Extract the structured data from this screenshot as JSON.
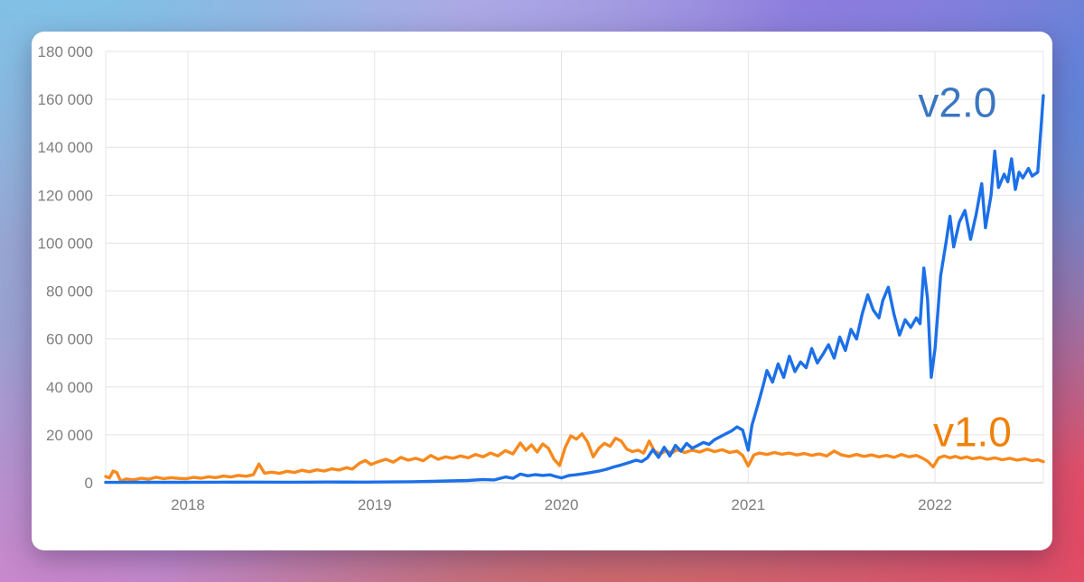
{
  "chart_data": {
    "type": "line",
    "title": "",
    "xlabel": "",
    "ylabel": "",
    "grid": true,
    "legend_position": "inline-annotations",
    "x_axis": {
      "range": [
        2017.56,
        2022.58
      ],
      "ticks": [
        2018,
        2019,
        2020,
        2021,
        2022
      ],
      "tick_labels": [
        "2018",
        "2019",
        "2020",
        "2021",
        "2022"
      ]
    },
    "y_axis": {
      "range": [
        0,
        180000
      ],
      "ticks": [
        0,
        20000,
        40000,
        60000,
        80000,
        100000,
        120000,
        140000,
        160000,
        180000
      ],
      "tick_labels": [
        "0",
        "20 000",
        "40 000",
        "60 000",
        "80 000",
        "100 000",
        "120 000",
        "140 000",
        "160 000",
        "180 000"
      ]
    },
    "styles": {
      "gridline_color": "#e4e4e4",
      "zero_line_color": "#c9c9c9",
      "tick_text_color": "#7e7e7e",
      "tick_font_size": 17,
      "line_width": 3.4
    },
    "series": [
      {
        "name": "v1.0",
        "color": "#f8891d",
        "points": [
          [
            2017.56,
            2600
          ],
          [
            2017.58,
            2000
          ],
          [
            2017.6,
            4900
          ],
          [
            2017.62,
            4200
          ],
          [
            2017.64,
            700
          ],
          [
            2017.67,
            1600
          ],
          [
            2017.71,
            1200
          ],
          [
            2017.75,
            1900
          ],
          [
            2017.79,
            1450
          ],
          [
            2017.83,
            2300
          ],
          [
            2017.87,
            1700
          ],
          [
            2017.91,
            2100
          ],
          [
            2017.95,
            1800
          ],
          [
            2017.99,
            1650
          ],
          [
            2018.03,
            2250
          ],
          [
            2018.07,
            1900
          ],
          [
            2018.11,
            2500
          ],
          [
            2018.15,
            2150
          ],
          [
            2018.19,
            2800
          ],
          [
            2018.23,
            2400
          ],
          [
            2018.27,
            3100
          ],
          [
            2018.31,
            2700
          ],
          [
            2018.35,
            3300
          ],
          [
            2018.38,
            7800
          ],
          [
            2018.41,
            4000
          ],
          [
            2018.45,
            4400
          ],
          [
            2018.49,
            3900
          ],
          [
            2018.53,
            4800
          ],
          [
            2018.57,
            4300
          ],
          [
            2018.61,
            5200
          ],
          [
            2018.65,
            4600
          ],
          [
            2018.69,
            5400
          ],
          [
            2018.73,
            4900
          ],
          [
            2018.77,
            5800
          ],
          [
            2018.81,
            5300
          ],
          [
            2018.85,
            6300
          ],
          [
            2018.88,
            5700
          ],
          [
            2018.92,
            8200
          ],
          [
            2018.95,
            9300
          ],
          [
            2018.98,
            7600
          ],
          [
            2019.02,
            8800
          ],
          [
            2019.06,
            9800
          ],
          [
            2019.1,
            8600
          ],
          [
            2019.14,
            10600
          ],
          [
            2019.18,
            9400
          ],
          [
            2019.22,
            10200
          ],
          [
            2019.26,
            9200
          ],
          [
            2019.3,
            11400
          ],
          [
            2019.34,
            9800
          ],
          [
            2019.38,
            10800
          ],
          [
            2019.42,
            10200
          ],
          [
            2019.46,
            11200
          ],
          [
            2019.5,
            10400
          ],
          [
            2019.54,
            11800
          ],
          [
            2019.58,
            10800
          ],
          [
            2019.62,
            12400
          ],
          [
            2019.66,
            11200
          ],
          [
            2019.7,
            13400
          ],
          [
            2019.74,
            12000
          ],
          [
            2019.78,
            16600
          ],
          [
            2019.81,
            13600
          ],
          [
            2019.84,
            15800
          ],
          [
            2019.87,
            12800
          ],
          [
            2019.9,
            16200
          ],
          [
            2019.93,
            14400
          ],
          [
            2019.96,
            9800
          ],
          [
            2019.99,
            7200
          ],
          [
            2020.02,
            14800
          ],
          [
            2020.05,
            19600
          ],
          [
            2020.08,
            18200
          ],
          [
            2020.11,
            20400
          ],
          [
            2020.14,
            17000
          ],
          [
            2020.17,
            10800
          ],
          [
            2020.2,
            14400
          ],
          [
            2020.23,
            16400
          ],
          [
            2020.26,
            15200
          ],
          [
            2020.29,
            18600
          ],
          [
            2020.32,
            17400
          ],
          [
            2020.35,
            14000
          ],
          [
            2020.38,
            13000
          ],
          [
            2020.41,
            13600
          ],
          [
            2020.44,
            12400
          ],
          [
            2020.47,
            17400
          ],
          [
            2020.5,
            13000
          ],
          [
            2020.53,
            12000
          ],
          [
            2020.56,
            13400
          ],
          [
            2020.59,
            12400
          ],
          [
            2020.62,
            13800
          ],
          [
            2020.66,
            12600
          ],
          [
            2020.7,
            13600
          ],
          [
            2020.74,
            12800
          ],
          [
            2020.78,
            14000
          ],
          [
            2020.82,
            13000
          ],
          [
            2020.86,
            13800
          ],
          [
            2020.9,
            12600
          ],
          [
            2020.94,
            13200
          ],
          [
            2020.97,
            11400
          ],
          [
            2021.0,
            7000
          ],
          [
            2021.03,
            11600
          ],
          [
            2021.06,
            12400
          ],
          [
            2021.1,
            11800
          ],
          [
            2021.14,
            12600
          ],
          [
            2021.18,
            11900
          ],
          [
            2021.22,
            12400
          ],
          [
            2021.26,
            11600
          ],
          [
            2021.3,
            12200
          ],
          [
            2021.34,
            11400
          ],
          [
            2021.38,
            12000
          ],
          [
            2021.42,
            11200
          ],
          [
            2021.46,
            13200
          ],
          [
            2021.5,
            11600
          ],
          [
            2021.54,
            11000
          ],
          [
            2021.58,
            11800
          ],
          [
            2021.62,
            11000
          ],
          [
            2021.66,
            11600
          ],
          [
            2021.7,
            10800
          ],
          [
            2021.74,
            11400
          ],
          [
            2021.78,
            10600
          ],
          [
            2021.82,
            11800
          ],
          [
            2021.86,
            10800
          ],
          [
            2021.9,
            11400
          ],
          [
            2021.93,
            10400
          ],
          [
            2021.96,
            9000
          ],
          [
            2021.99,
            6600
          ],
          [
            2022.02,
            10400
          ],
          [
            2022.05,
            11200
          ],
          [
            2022.08,
            10400
          ],
          [
            2022.11,
            11000
          ],
          [
            2022.14,
            10200
          ],
          [
            2022.17,
            10800
          ],
          [
            2022.2,
            10000
          ],
          [
            2022.24,
            10600
          ],
          [
            2022.28,
            9800
          ],
          [
            2022.32,
            10400
          ],
          [
            2022.36,
            9600
          ],
          [
            2022.4,
            10200
          ],
          [
            2022.44,
            9400
          ],
          [
            2022.48,
            10000
          ],
          [
            2022.52,
            9200
          ],
          [
            2022.55,
            9600
          ],
          [
            2022.58,
            8800
          ]
        ]
      },
      {
        "name": "v2.0",
        "color": "#1c70e8",
        "points": [
          [
            2017.56,
            150
          ],
          [
            2017.75,
            200
          ],
          [
            2017.95,
            180
          ],
          [
            2018.15,
            220
          ],
          [
            2018.35,
            250
          ],
          [
            2018.55,
            220
          ],
          [
            2018.75,
            300
          ],
          [
            2018.95,
            280
          ],
          [
            2019.1,
            350
          ],
          [
            2019.2,
            420
          ],
          [
            2019.3,
            550
          ],
          [
            2019.4,
            750
          ],
          [
            2019.5,
            950
          ],
          [
            2019.58,
            1350
          ],
          [
            2019.64,
            1150
          ],
          [
            2019.7,
            2400
          ],
          [
            2019.74,
            1850
          ],
          [
            2019.78,
            3600
          ],
          [
            2019.82,
            2900
          ],
          [
            2019.86,
            3400
          ],
          [
            2019.9,
            3050
          ],
          [
            2019.94,
            3300
          ],
          [
            2019.97,
            2600
          ],
          [
            2020.0,
            2050
          ],
          [
            2020.04,
            3000
          ],
          [
            2020.08,
            3350
          ],
          [
            2020.12,
            3800
          ],
          [
            2020.16,
            4300
          ],
          [
            2020.2,
            4850
          ],
          [
            2020.24,
            5600
          ],
          [
            2020.28,
            6600
          ],
          [
            2020.32,
            7400
          ],
          [
            2020.36,
            8400
          ],
          [
            2020.4,
            9400
          ],
          [
            2020.43,
            8800
          ],
          [
            2020.46,
            10400
          ],
          [
            2020.49,
            13800
          ],
          [
            2020.52,
            10600
          ],
          [
            2020.55,
            14800
          ],
          [
            2020.58,
            11200
          ],
          [
            2020.61,
            15600
          ],
          [
            2020.64,
            13200
          ],
          [
            2020.67,
            16400
          ],
          [
            2020.7,
            14400
          ],
          [
            2020.73,
            15600
          ],
          [
            2020.76,
            16800
          ],
          [
            2020.79,
            16000
          ],
          [
            2020.82,
            18000
          ],
          [
            2020.85,
            19200
          ],
          [
            2020.88,
            20400
          ],
          [
            2020.91,
            21600
          ],
          [
            2020.94,
            23300
          ],
          [
            2020.97,
            22000
          ],
          [
            2021.0,
            13600
          ],
          [
            2021.02,
            24000
          ],
          [
            2021.05,
            32000
          ],
          [
            2021.08,
            40500
          ],
          [
            2021.1,
            46800
          ],
          [
            2021.13,
            42000
          ],
          [
            2021.16,
            49600
          ],
          [
            2021.19,
            44000
          ],
          [
            2021.22,
            52800
          ],
          [
            2021.25,
            46400
          ],
          [
            2021.28,
            50400
          ],
          [
            2021.31,
            48000
          ],
          [
            2021.34,
            56000
          ],
          [
            2021.37,
            50000
          ],
          [
            2021.4,
            53600
          ],
          [
            2021.43,
            57600
          ],
          [
            2021.46,
            52000
          ],
          [
            2021.49,
            60800
          ],
          [
            2021.52,
            55200
          ],
          [
            2021.55,
            64000
          ],
          [
            2021.58,
            60000
          ],
          [
            2021.61,
            70400
          ],
          [
            2021.64,
            78400
          ],
          [
            2021.67,
            72000
          ],
          [
            2021.7,
            68800
          ],
          [
            2021.72,
            76000
          ],
          [
            2021.75,
            81600
          ],
          [
            2021.78,
            70400
          ],
          [
            2021.81,
            61600
          ],
          [
            2021.84,
            68000
          ],
          [
            2021.87,
            64800
          ],
          [
            2021.9,
            68800
          ],
          [
            2021.92,
            66400
          ],
          [
            2021.94,
            89600
          ],
          [
            2021.96,
            76800
          ],
          [
            2021.98,
            44000
          ],
          [
            2022.0,
            56000
          ],
          [
            2022.03,
            86400
          ],
          [
            2022.06,
            100800
          ],
          [
            2022.08,
            111200
          ],
          [
            2022.1,
            98400
          ],
          [
            2022.13,
            108800
          ],
          [
            2022.16,
            113600
          ],
          [
            2022.19,
            101600
          ],
          [
            2022.22,
            112000
          ],
          [
            2022.25,
            124800
          ],
          [
            2022.27,
            106400
          ],
          [
            2022.3,
            120000
          ],
          [
            2022.32,
            138400
          ],
          [
            2022.34,
            123200
          ],
          [
            2022.37,
            128800
          ],
          [
            2022.39,
            125600
          ],
          [
            2022.41,
            135200
          ],
          [
            2022.43,
            122400
          ],
          [
            2022.45,
            129600
          ],
          [
            2022.47,
            127200
          ],
          [
            2022.5,
            131200
          ],
          [
            2022.52,
            128000
          ],
          [
            2022.55,
            129600
          ],
          [
            2022.58,
            161600
          ]
        ]
      }
    ],
    "annotations": [
      {
        "text": "v2.0",
        "x": 2022.12,
        "y": 159000,
        "color": "#3b76c0",
        "font_size": 46
      },
      {
        "text": "v1.0",
        "x": 2022.2,
        "y": 21500,
        "color": "#ee8108",
        "font_size": 46
      }
    ]
  }
}
